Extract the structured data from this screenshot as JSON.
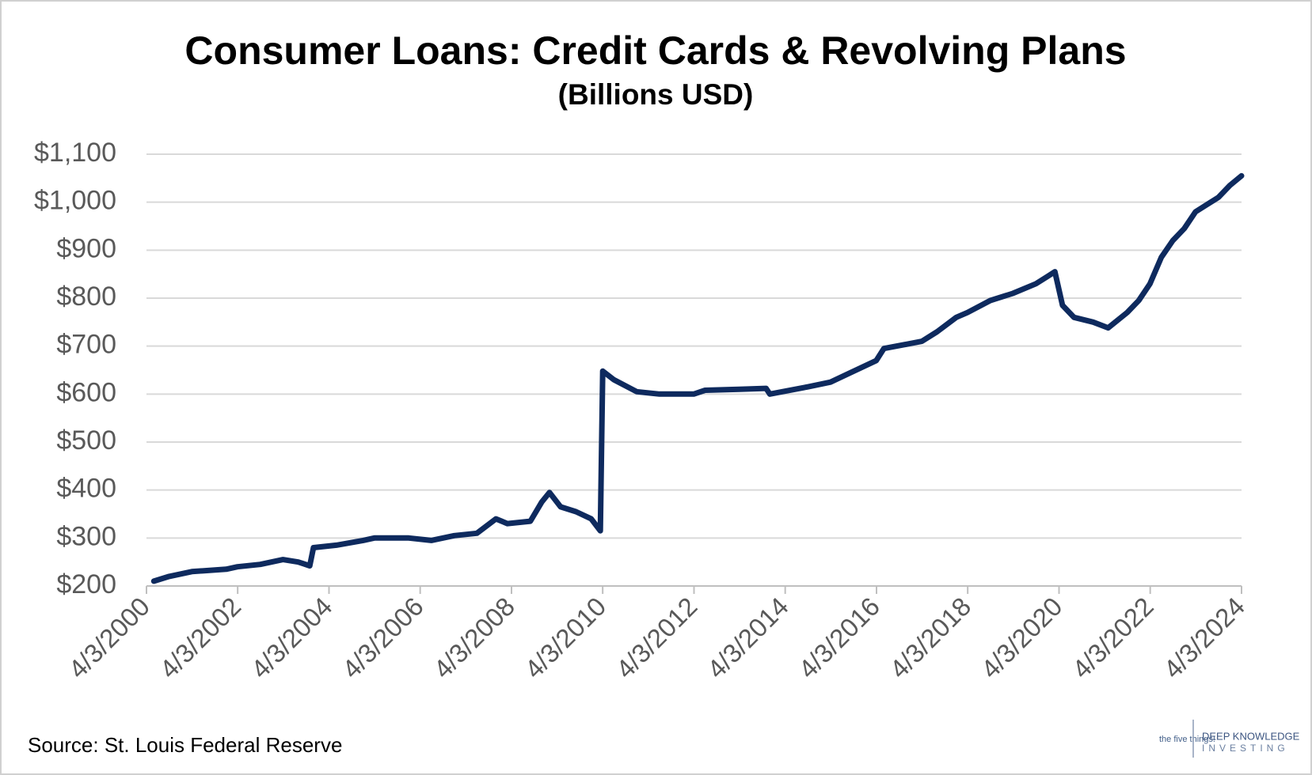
{
  "chart_data": {
    "type": "line",
    "title": "Consumer Loans: Credit Cards & Revolving Plans",
    "subtitle": "(Billions USD)",
    "source": "Source: St. Louis Federal Reserve",
    "logo": {
      "left": "the five things!",
      "right_top": "DEEP KNOWLEDGE",
      "right_bottom": "INVESTING"
    },
    "x": [
      "2000-06-01",
      "2000-10-01",
      "2001-04-01",
      "2002-01-01",
      "2002-04-01",
      "2002-10-01",
      "2003-04-01",
      "2003-08-01",
      "2003-11-01",
      "2003-12-01",
      "2004-06-01",
      "2005-01-01",
      "2005-04-01",
      "2006-01-01",
      "2006-07-01",
      "2007-01-01",
      "2007-07-01",
      "2007-12-01",
      "2008-03-01",
      "2008-09-01",
      "2008-12-01",
      "2009-02-01",
      "2009-05-01",
      "2009-09-01",
      "2010-01-01",
      "2010-03-15",
      "2010-04-03",
      "2010-07-01",
      "2011-01-01",
      "2011-07-01",
      "2012-04-01",
      "2012-07-01",
      "2013-04-01",
      "2013-11-01",
      "2013-12-01",
      "2014-10-01",
      "2015-04-01",
      "2015-08-01",
      "2016-04-01",
      "2016-06-01",
      "2017-04-01",
      "2017-08-01",
      "2018-01-01",
      "2018-04-01",
      "2018-10-01",
      "2019-04-01",
      "2019-10-01",
      "2020-01-01",
      "2020-03-01",
      "2020-05-01",
      "2020-08-01",
      "2021-01-01",
      "2021-05-01",
      "2021-10-01",
      "2022-01-01",
      "2022-04-01",
      "2022-07-01",
      "2022-10-01",
      "2023-01-01",
      "2023-04-01",
      "2023-10-01",
      "2024-01-01",
      "2024-04-03"
    ],
    "series": [
      {
        "name": "Credit Cards & Revolving Plans",
        "color": "#0e2a5e",
        "values": [
          210,
          220,
          230,
          235,
          240,
          245,
          255,
          250,
          242,
          280,
          285,
          295,
          300,
          300,
          295,
          305,
          310,
          340,
          330,
          335,
          375,
          395,
          365,
          355,
          340,
          315,
          648,
          630,
          605,
          600,
          600,
          608,
          610,
          612,
          600,
          615,
          625,
          640,
          670,
          695,
          710,
          730,
          760,
          770,
          795,
          810,
          830,
          845,
          855,
          785,
          760,
          750,
          738,
          770,
          795,
          830,
          885,
          920,
          945,
          980,
          1010,
          1035,
          1055
        ]
      }
    ],
    "xlim": [
      "2000-04-03",
      "2024-04-03"
    ],
    "xticks": [
      {
        "value": "2000-04-03",
        "label": "4/3/2000"
      },
      {
        "value": "2002-04-03",
        "label": "4/3/2002"
      },
      {
        "value": "2004-04-03",
        "label": "4/3/2004"
      },
      {
        "value": "2006-04-03",
        "label": "4/3/2006"
      },
      {
        "value": "2008-04-03",
        "label": "4/3/2008"
      },
      {
        "value": "2010-04-03",
        "label": "4/3/2010"
      },
      {
        "value": "2012-04-03",
        "label": "4/3/2012"
      },
      {
        "value": "2014-04-03",
        "label": "4/3/2014"
      },
      {
        "value": "2016-04-03",
        "label": "4/3/2016"
      },
      {
        "value": "2018-04-03",
        "label": "4/3/2018"
      },
      {
        "value": "2020-04-03",
        "label": "4/3/2020"
      },
      {
        "value": "2022-04-03",
        "label": "4/3/2022"
      },
      {
        "value": "2024-04-03",
        "label": "4/3/2024"
      }
    ],
    "ylim": [
      200,
      1100
    ],
    "yticks": [
      {
        "value": 200,
        "label": "$200"
      },
      {
        "value": 300,
        "label": "$300"
      },
      {
        "value": 400,
        "label": "$400"
      },
      {
        "value": 500,
        "label": "$500"
      },
      {
        "value": 600,
        "label": "$600"
      },
      {
        "value": 700,
        "label": "$700"
      },
      {
        "value": 800,
        "label": "$800"
      },
      {
        "value": 900,
        "label": "$900"
      },
      {
        "value": 1000,
        "label": "$1,000"
      },
      {
        "value": 1100,
        "label": "$1,100"
      }
    ],
    "grid": true
  }
}
